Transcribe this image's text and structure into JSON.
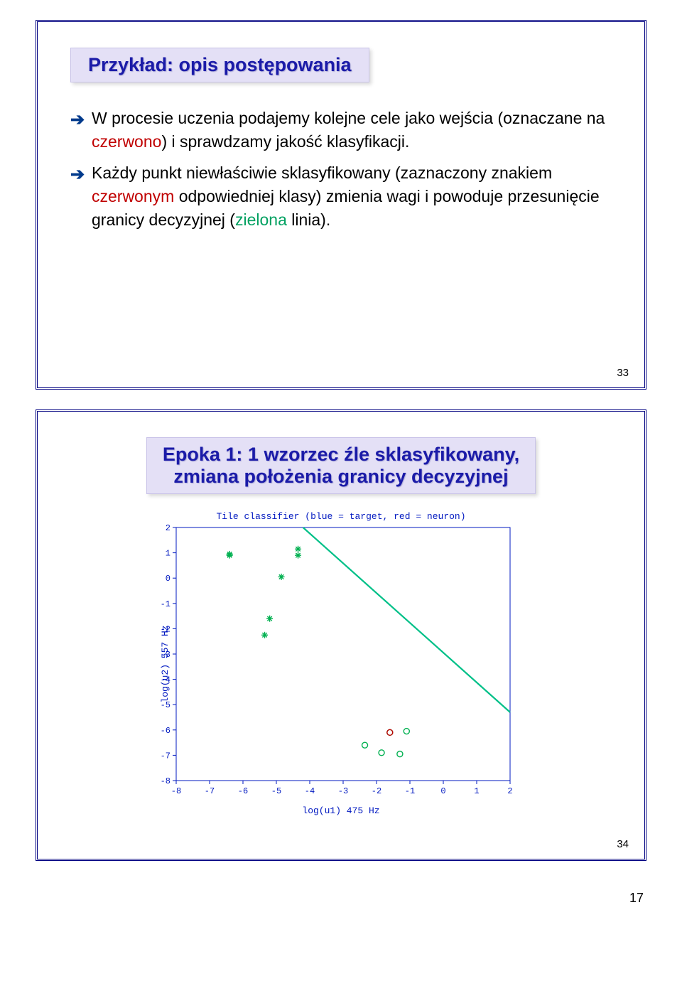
{
  "slide1": {
    "title": "Przykład: opis postępowania",
    "bullets": [
      {
        "segments": [
          {
            "text": "W procesie uczenia podajemy kolejne cele jako wejścia (oznaczane na ",
            "color": "#000000"
          },
          {
            "text": "czerwono",
            "color": "#c00000"
          },
          {
            "text": ") i sprawdzamy jakość klasyfikacji.",
            "color": "#000000"
          }
        ]
      },
      {
        "segments": [
          {
            "text": "Każdy punkt niewłaściwie sklasyfikowany (zaznaczony znakiem ",
            "color": "#000000"
          },
          {
            "text": "czerwonym",
            "color": "#c00000"
          },
          {
            "text": " odpowiedniej klasy) zmienia wagi i powoduje przesunięcie granicy decyzyjnej (",
            "color": "#000000"
          },
          {
            "text": "zielona",
            "color": "#00a060"
          },
          {
            "text": " linia).",
            "color": "#000000"
          }
        ]
      }
    ],
    "slide_number": "33"
  },
  "slide2": {
    "title_line1": "Epoka 1: 1 wzorzec źle sklasyfikowany,",
    "title_line2": "zmiana położenia granicy decyzyjnej",
    "chart": {
      "type": "scatter",
      "title": "Tile classifier (blue = target, red = neuron)",
      "xlabel": "log(u1) 475 Hz",
      "ylabel": "log(u2) 557 Hz",
      "xlim": [
        -8,
        2
      ],
      "ylim": [
        -8,
        2
      ],
      "xticks": [
        -8,
        -7,
        -6,
        -5,
        -4,
        -3,
        -2,
        -1,
        0,
        1,
        2
      ],
      "yticks": [
        -8,
        -7,
        -6,
        -5,
        -4,
        -3,
        -2,
        -1,
        0,
        1,
        2
      ],
      "axis_color": "#0018c0",
      "background_color": "#ffffff",
      "scatter_groups": [
        {
          "marker": "asterisk",
          "color": "#00b050",
          "points": [
            [
              -6.4,
              0.9
            ],
            [
              -6.4,
              0.95
            ],
            [
              -4.35,
              0.9
            ],
            [
              -4.35,
              1.15
            ],
            [
              -4.85,
              0.05
            ],
            [
              -5.2,
              -1.6
            ],
            [
              -5.35,
              -2.25
            ]
          ]
        },
        {
          "marker": "circle",
          "color": "#00b050",
          "points": [
            [
              -1.6,
              -6.1
            ],
            [
              -1.1,
              -6.05
            ],
            [
              -1.85,
              -6.9
            ],
            [
              -1.3,
              -6.95
            ],
            [
              -2.35,
              -6.6
            ]
          ]
        },
        {
          "marker": "circle",
          "color": "#c00000",
          "points": [
            [
              -1.6,
              -6.1
            ]
          ]
        }
      ],
      "line": {
        "color": "#00c088",
        "width": 2.2,
        "p1": [
          -4.2,
          2
        ],
        "p2": [
          2,
          -5.3
        ]
      },
      "tick_fontsize": 12,
      "label_fontsize": 13
    },
    "slide_number": "34"
  },
  "page_number": "17"
}
